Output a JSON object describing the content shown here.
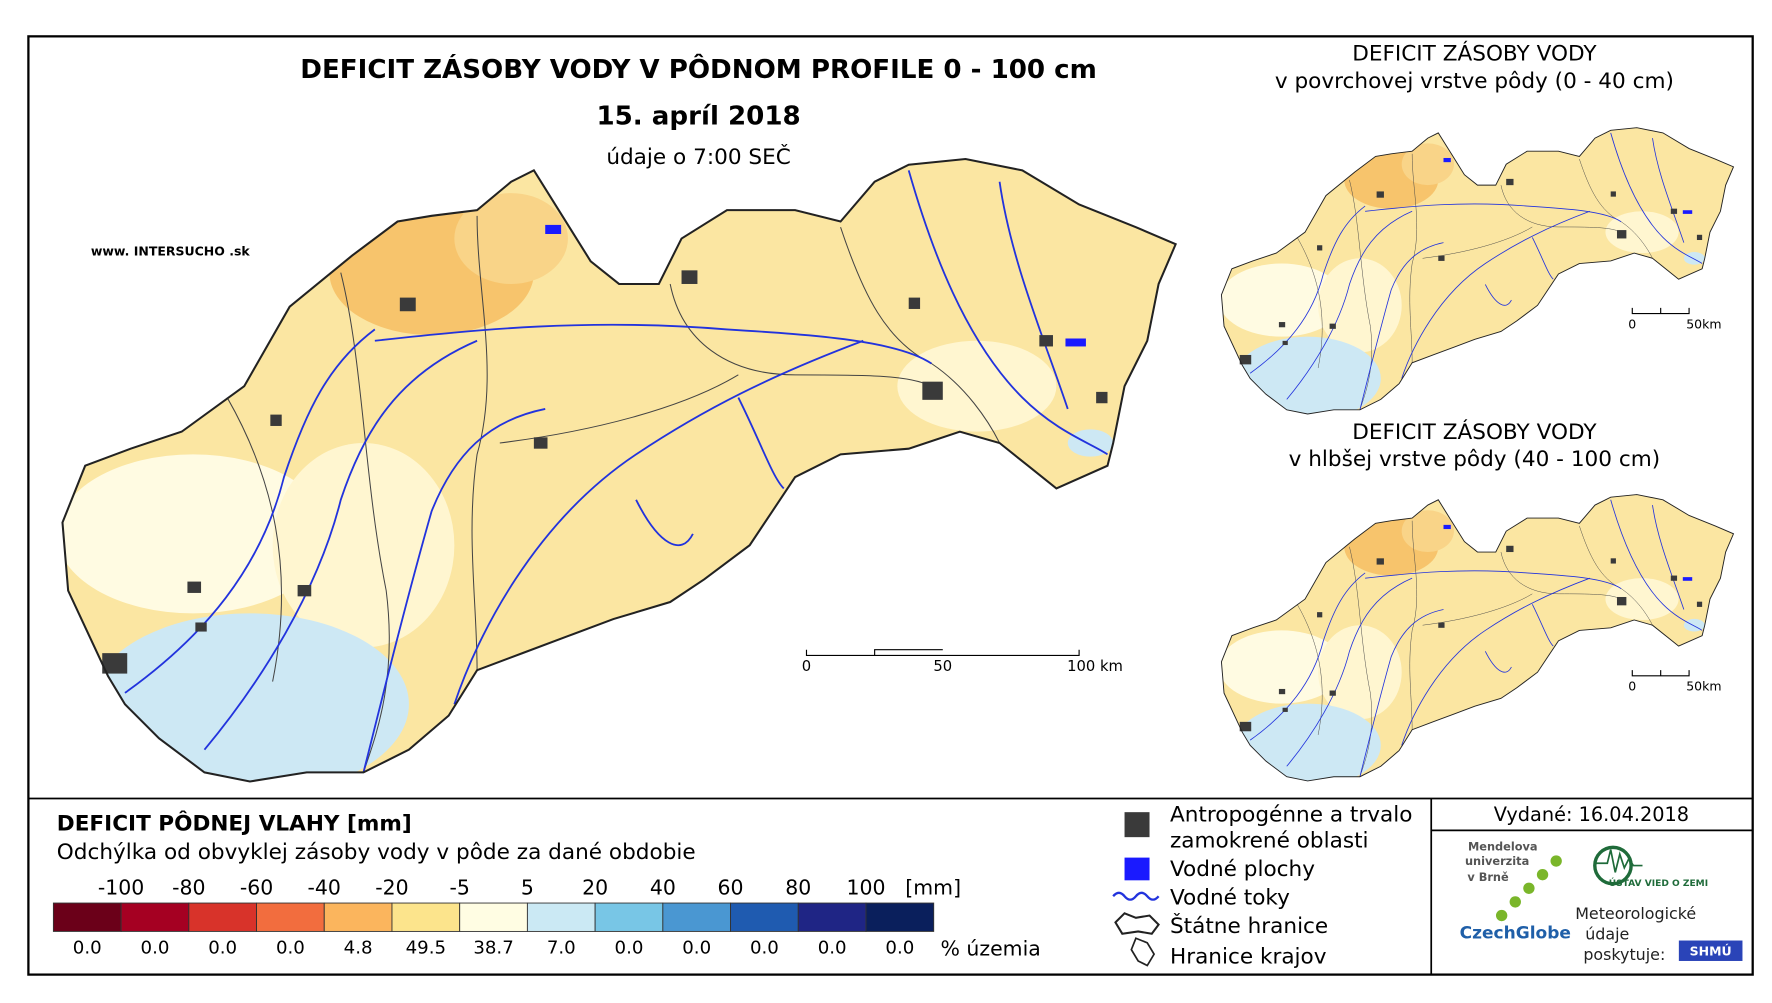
{
  "main_map": {
    "title": "DEFICIT ZÁSOBY VODY V PÔDNOM PROFILE 0 - 100 cm",
    "date": "15. apríl 2018",
    "time_note": "údaje o 7:00 SEČ",
    "website": "www. INTERSUCHO .sk",
    "scale": [
      "0",
      "50",
      "100 km"
    ]
  },
  "inset_maps": [
    {
      "title": "DEFICIT ZÁSOBY VODY",
      "subtitle": "v povrchovej vrstve pôdy (0 - 40 cm)",
      "scale": [
        "0",
        "50km"
      ]
    },
    {
      "title": "DEFICIT ZÁSOBY VODY",
      "subtitle": "v hlbšej vrstve pôdy (40 - 100 cm)",
      "scale": [
        "0",
        "50km"
      ]
    }
  ],
  "legend": {
    "title": "DEFICIT PÔDNEJ VLAHY [mm]",
    "subtitle": "Odchýlka od obvyklej zásoby vody v pôde za dané obdobie",
    "class_labels": [
      "-100",
      "-80",
      "-60",
      "-40",
      "-20",
      "-5",
      "5",
      "20",
      "40",
      "60",
      "80",
      "100"
    ],
    "unit": "[mm]",
    "classes": [
      {
        "color": "#6b0019",
        "share": "0.0"
      },
      {
        "color": "#a50022",
        "share": "0.0"
      },
      {
        "color": "#d8332a",
        "share": "0.0"
      },
      {
        "color": "#f26d3e",
        "share": "0.0"
      },
      {
        "color": "#fbb55d",
        "share": "4.8"
      },
      {
        "color": "#fce48c",
        "share": "49.5"
      },
      {
        "color": "#fffde3",
        "share": "38.7"
      },
      {
        "color": "#cbe9f4",
        "share": "7.0"
      },
      {
        "color": "#78c6e6",
        "share": "0.0"
      },
      {
        "color": "#4a97d2",
        "share": "0.0"
      },
      {
        "color": "#1f5bb0",
        "share": "0.0"
      },
      {
        "color": "#1f2585",
        "share": "0.0"
      },
      {
        "color": "#0a1f5c",
        "share": "0.0"
      }
    ],
    "share_unit": "% územia"
  },
  "map_key": [
    {
      "lines": [
        "Antropogénne a trvalo",
        "zamokrené oblasti"
      ]
    },
    {
      "lines": [
        "Vodné plochy"
      ]
    },
    {
      "lines": [
        "Vodné toky"
      ]
    },
    {
      "lines": [
        "Štátne hranice"
      ]
    },
    {
      "lines": [
        "Hranice krajov"
      ]
    }
  ],
  "issued": "Vydané: 16.04.2018",
  "logos": {
    "mendel": [
      "Mendelova",
      "univerzita",
      "v Brně"
    ],
    "czechglobe": "CzechGlobe",
    "ustav": "ÚSTAV VIED O ZEMI",
    "provider": [
      "Meteorologické",
      "údaje",
      "poskytuje:"
    ],
    "shmu": "SHMÚ"
  }
}
